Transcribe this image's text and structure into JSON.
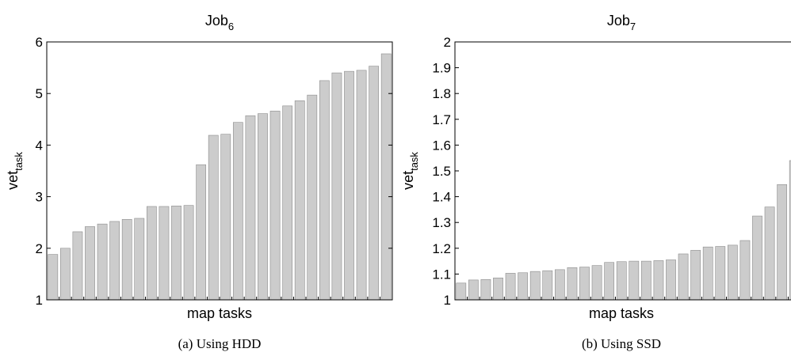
{
  "chart_data": [
    {
      "type": "bar",
      "title": "Job",
      "title_sub": "6",
      "xlabel": "map tasks",
      "ylabel": "vet",
      "ylabel_sub": "task",
      "ylim": [
        1,
        6
      ],
      "yticks": [
        1,
        2,
        3,
        4,
        5,
        6
      ],
      "ytick_labels": [
        "1",
        "2",
        "3",
        "4",
        "5",
        "6"
      ],
      "bar_color": "#cccccc",
      "grid": false,
      "values": [
        1.88,
        2.0,
        2.32,
        2.42,
        2.47,
        2.52,
        2.56,
        2.58,
        2.81,
        2.81,
        2.82,
        2.83,
        3.62,
        4.19,
        4.21,
        4.44,
        4.57,
        4.61,
        4.66,
        4.76,
        4.86,
        4.97,
        5.25,
        5.4,
        5.43,
        5.45,
        5.53,
        5.77
      ],
      "caption": "(a) Using HDD"
    },
    {
      "type": "bar",
      "title": "Job",
      "title_sub": "7",
      "xlabel": "map tasks",
      "ylabel": "vet",
      "ylabel_sub": "task",
      "ylim": [
        1,
        2
      ],
      "yticks": [
        1,
        1.1,
        1.2,
        1.3,
        1.4,
        1.5,
        1.6,
        1.7,
        1.8,
        1.9,
        2
      ],
      "ytick_labels": [
        "1",
        "1.1",
        "1.2",
        "1.3",
        "1.4",
        "1.5",
        "1.6",
        "1.7",
        "1.8",
        "1.9",
        "2"
      ],
      "bar_color": "#cccccc",
      "grid": false,
      "values": [
        1.065,
        1.077,
        1.079,
        1.085,
        1.103,
        1.105,
        1.11,
        1.113,
        1.117,
        1.125,
        1.127,
        1.133,
        1.145,
        1.148,
        1.15,
        1.15,
        1.152,
        1.155,
        1.178,
        1.192,
        1.205,
        1.207,
        1.212,
        1.23,
        1.325,
        1.36,
        1.447,
        1.54
      ],
      "caption": "(b) Using SSD"
    }
  ]
}
